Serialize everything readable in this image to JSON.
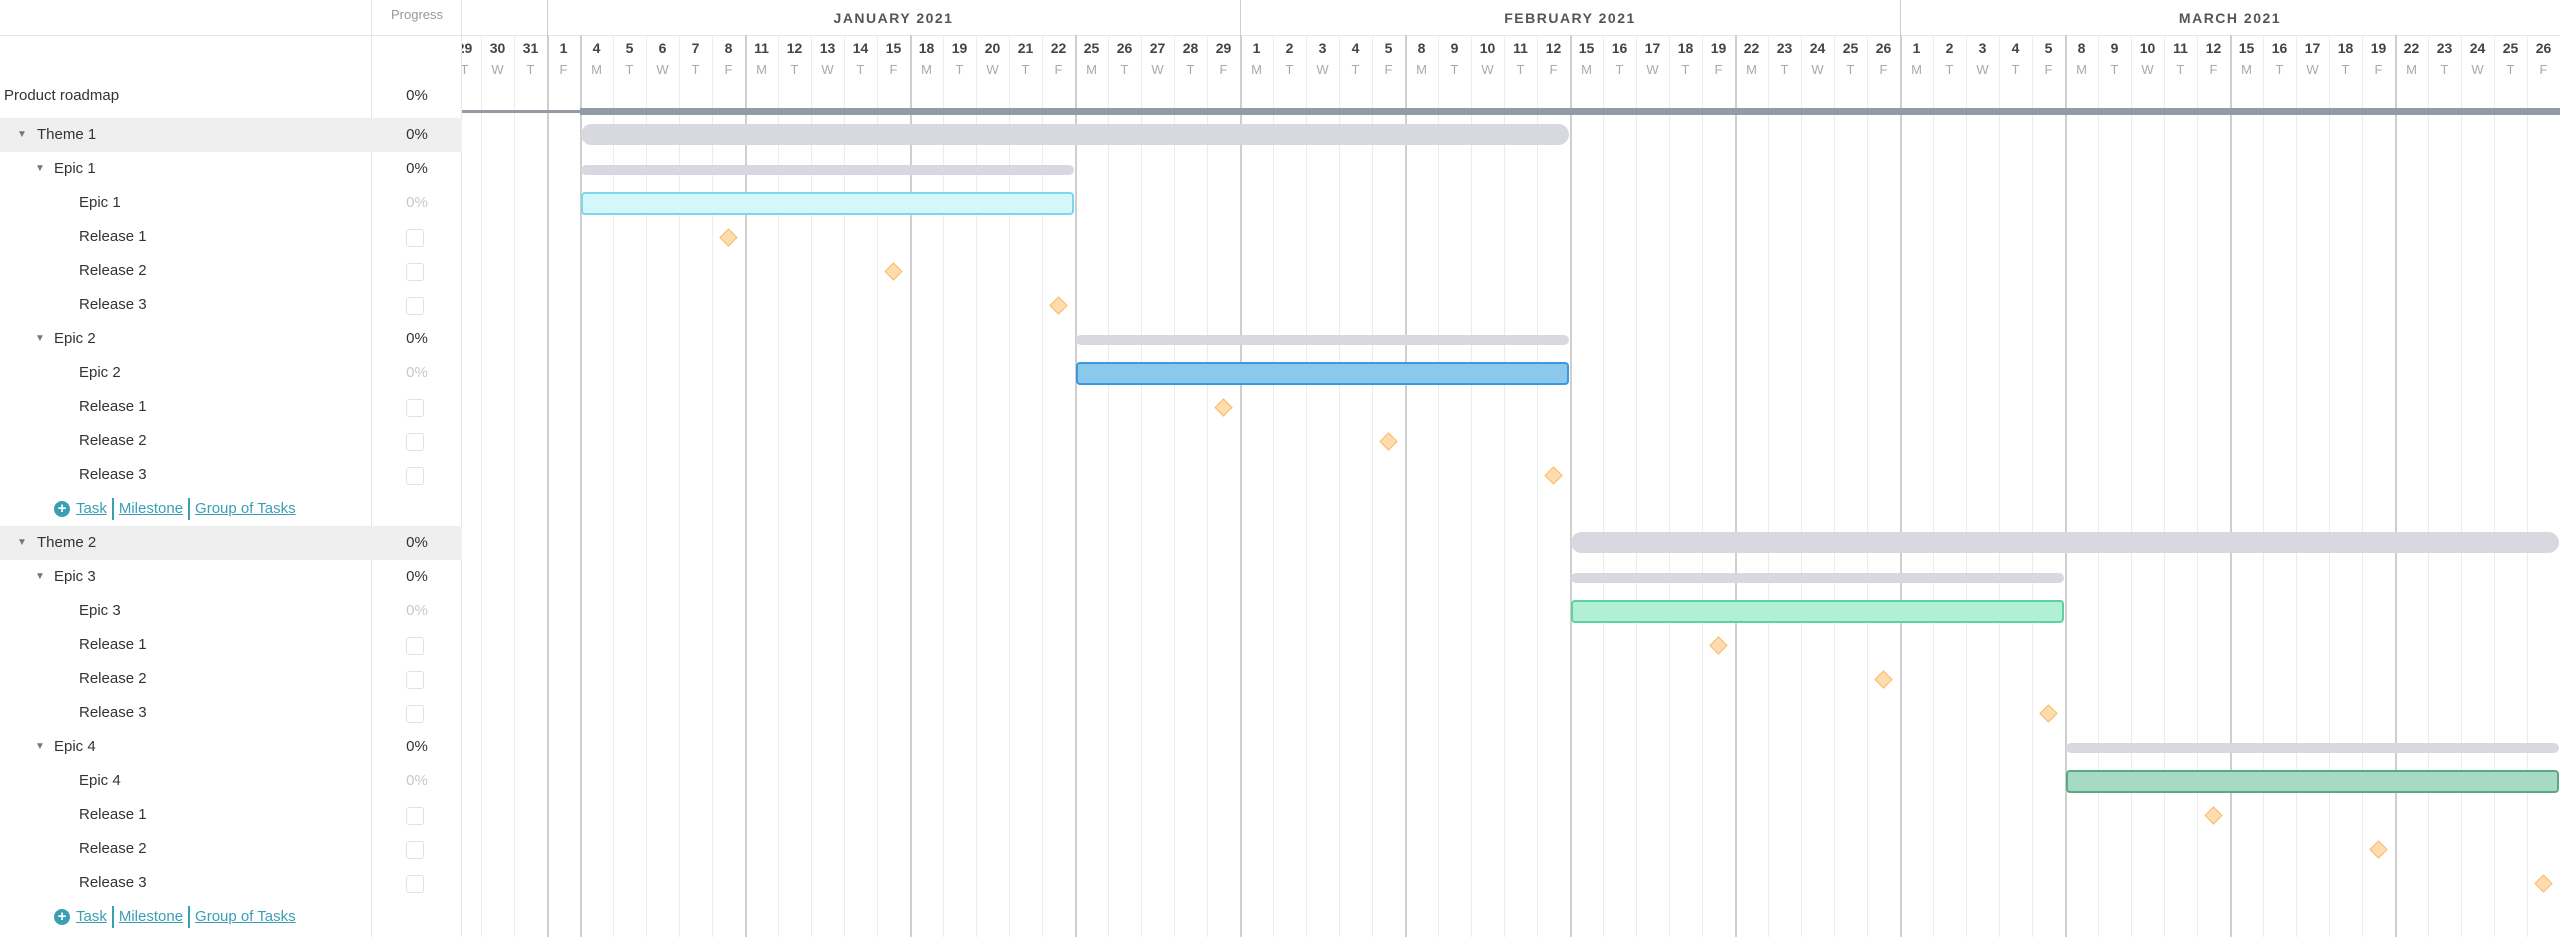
{
  "header": {
    "progress_label": "Progress"
  },
  "colors": {
    "theme_bar": "#d8d8e0",
    "group_bar": "#d8d8e0",
    "roadmap_bar": "#939ca4",
    "milestone_fill": "#ffdcae",
    "milestone_border": "#f8bc6a",
    "link": "#3a9fb3"
  },
  "timeline": {
    "months": [
      {
        "key": "Jan",
        "label": "JANUARY 2021"
      },
      {
        "key": "Feb",
        "label": "FEBRUARY 2021"
      },
      {
        "key": "Mar",
        "label": "MARCH 2021"
      }
    ],
    "days": [
      [
        "Dec",
        "29",
        "T"
      ],
      [
        "Dec",
        "30",
        "W"
      ],
      [
        "Dec",
        "31",
        "T"
      ],
      [
        "Jan",
        "1",
        "F"
      ],
      [
        "Jan",
        "4",
        "M"
      ],
      [
        "Jan",
        "5",
        "T"
      ],
      [
        "Jan",
        "6",
        "W"
      ],
      [
        "Jan",
        "7",
        "T"
      ],
      [
        "Jan",
        "8",
        "F"
      ],
      [
        "Jan",
        "11",
        "M"
      ],
      [
        "Jan",
        "12",
        "T"
      ],
      [
        "Jan",
        "13",
        "W"
      ],
      [
        "Jan",
        "14",
        "T"
      ],
      [
        "Jan",
        "15",
        "F"
      ],
      [
        "Jan",
        "18",
        "M"
      ],
      [
        "Jan",
        "19",
        "T"
      ],
      [
        "Jan",
        "20",
        "W"
      ],
      [
        "Jan",
        "21",
        "T"
      ],
      [
        "Jan",
        "22",
        "F"
      ],
      [
        "Jan",
        "25",
        "M"
      ],
      [
        "Jan",
        "26",
        "T"
      ],
      [
        "Jan",
        "27",
        "W"
      ],
      [
        "Jan",
        "28",
        "T"
      ],
      [
        "Jan",
        "29",
        "F"
      ],
      [
        "Feb",
        "1",
        "M"
      ],
      [
        "Feb",
        "2",
        "T"
      ],
      [
        "Feb",
        "3",
        "W"
      ],
      [
        "Feb",
        "4",
        "T"
      ],
      [
        "Feb",
        "5",
        "F"
      ],
      [
        "Feb",
        "8",
        "M"
      ],
      [
        "Feb",
        "9",
        "T"
      ],
      [
        "Feb",
        "10",
        "W"
      ],
      [
        "Feb",
        "11",
        "T"
      ],
      [
        "Feb",
        "12",
        "F"
      ],
      [
        "Feb",
        "15",
        "M"
      ],
      [
        "Feb",
        "16",
        "T"
      ],
      [
        "Feb",
        "17",
        "W"
      ],
      [
        "Feb",
        "18",
        "T"
      ],
      [
        "Feb",
        "19",
        "F"
      ],
      [
        "Feb",
        "22",
        "M"
      ],
      [
        "Feb",
        "23",
        "T"
      ],
      [
        "Feb",
        "24",
        "W"
      ],
      [
        "Feb",
        "25",
        "T"
      ],
      [
        "Feb",
        "26",
        "F"
      ],
      [
        "Mar",
        "1",
        "M"
      ],
      [
        "Mar",
        "2",
        "T"
      ],
      [
        "Mar",
        "3",
        "W"
      ],
      [
        "Mar",
        "4",
        "T"
      ],
      [
        "Mar",
        "5",
        "F"
      ],
      [
        "Mar",
        "8",
        "M"
      ],
      [
        "Mar",
        "9",
        "T"
      ],
      [
        "Mar",
        "10",
        "W"
      ],
      [
        "Mar",
        "11",
        "T"
      ],
      [
        "Mar",
        "12",
        "F"
      ],
      [
        "Mar",
        "15",
        "M"
      ],
      [
        "Mar",
        "16",
        "T"
      ],
      [
        "Mar",
        "17",
        "W"
      ],
      [
        "Mar",
        "18",
        "T"
      ],
      [
        "Mar",
        "19",
        "F"
      ],
      [
        "Mar",
        "22",
        "M"
      ],
      [
        "Mar",
        "23",
        "T"
      ],
      [
        "Mar",
        "24",
        "W"
      ],
      [
        "Mar",
        "25",
        "T"
      ],
      [
        "Mar",
        "26",
        "F"
      ]
    ]
  },
  "roadmap": {
    "name": "Product roadmap",
    "progress": "0%",
    "start": "Jan 4",
    "end": "Mar 26"
  },
  "rows": [
    {
      "type": "theme",
      "name": "Theme 1",
      "progress": "0%",
      "start": "Jan 4",
      "end": "Feb 12"
    },
    {
      "type": "epic",
      "name": "Epic 1",
      "progress": "0%",
      "start": "Jan 4",
      "end": "Jan 22"
    },
    {
      "type": "task",
      "name": "Epic 1",
      "progress": "0%",
      "start": "Jan 4",
      "end": "Jan 22",
      "fill": "#d4f7fc",
      "border": "#7dd6ea"
    },
    {
      "type": "milestone",
      "name": "Release 1",
      "date": "Jan 8"
    },
    {
      "type": "milestone",
      "name": "Release 2",
      "date": "Jan 15"
    },
    {
      "type": "milestone",
      "name": "Release 3",
      "date": "Jan 22"
    },
    {
      "type": "epic",
      "name": "Epic 2",
      "progress": "0%",
      "start": "Jan 25",
      "end": "Feb 12"
    },
    {
      "type": "task",
      "name": "Epic 2",
      "progress": "0%",
      "start": "Jan 25",
      "end": "Feb 12",
      "fill": "#8bc9ec",
      "border": "#3b97e0"
    },
    {
      "type": "milestone",
      "name": "Release 1",
      "date": "Jan 29"
    },
    {
      "type": "milestone",
      "name": "Release 2",
      "date": "Feb 5"
    },
    {
      "type": "milestone",
      "name": "Release 3",
      "date": "Feb 12"
    },
    {
      "type": "add",
      "task": "Task",
      "milestone": "Milestone",
      "group": "Group of Tasks"
    },
    {
      "type": "theme",
      "name": "Theme 2",
      "progress": "0%",
      "start": "Feb 15",
      "end": "Mar 26"
    },
    {
      "type": "epic",
      "name": "Epic 3",
      "progress": "0%",
      "start": "Feb 15",
      "end": "Mar 5"
    },
    {
      "type": "task",
      "name": "Epic 3",
      "progress": "0%",
      "start": "Feb 15",
      "end": "Mar 5",
      "fill": "#b2f0d5",
      "border": "#5fd0a0"
    },
    {
      "type": "milestone",
      "name": "Release 1",
      "date": "Feb 19"
    },
    {
      "type": "milestone",
      "name": "Release 2",
      "date": "Feb 26"
    },
    {
      "type": "milestone",
      "name": "Release 3",
      "date": "Mar 5"
    },
    {
      "type": "epic",
      "name": "Epic 4",
      "progress": "0%",
      "start": "Mar 8",
      "end": "Mar 26"
    },
    {
      "type": "task",
      "name": "Epic 4",
      "progress": "0%",
      "start": "Mar 8",
      "end": "Mar 26",
      "fill": "#a7dac4",
      "border": "#5aa887"
    },
    {
      "type": "milestone",
      "name": "Release 1",
      "date": "Mar 12"
    },
    {
      "type": "milestone",
      "name": "Release 2",
      "date": "Mar 19"
    },
    {
      "type": "milestone",
      "name": "Release 3",
      "date": "Mar 26"
    },
    {
      "type": "add",
      "task": "Task",
      "milestone": "Milestone",
      "group": "Group of Tasks"
    }
  ]
}
